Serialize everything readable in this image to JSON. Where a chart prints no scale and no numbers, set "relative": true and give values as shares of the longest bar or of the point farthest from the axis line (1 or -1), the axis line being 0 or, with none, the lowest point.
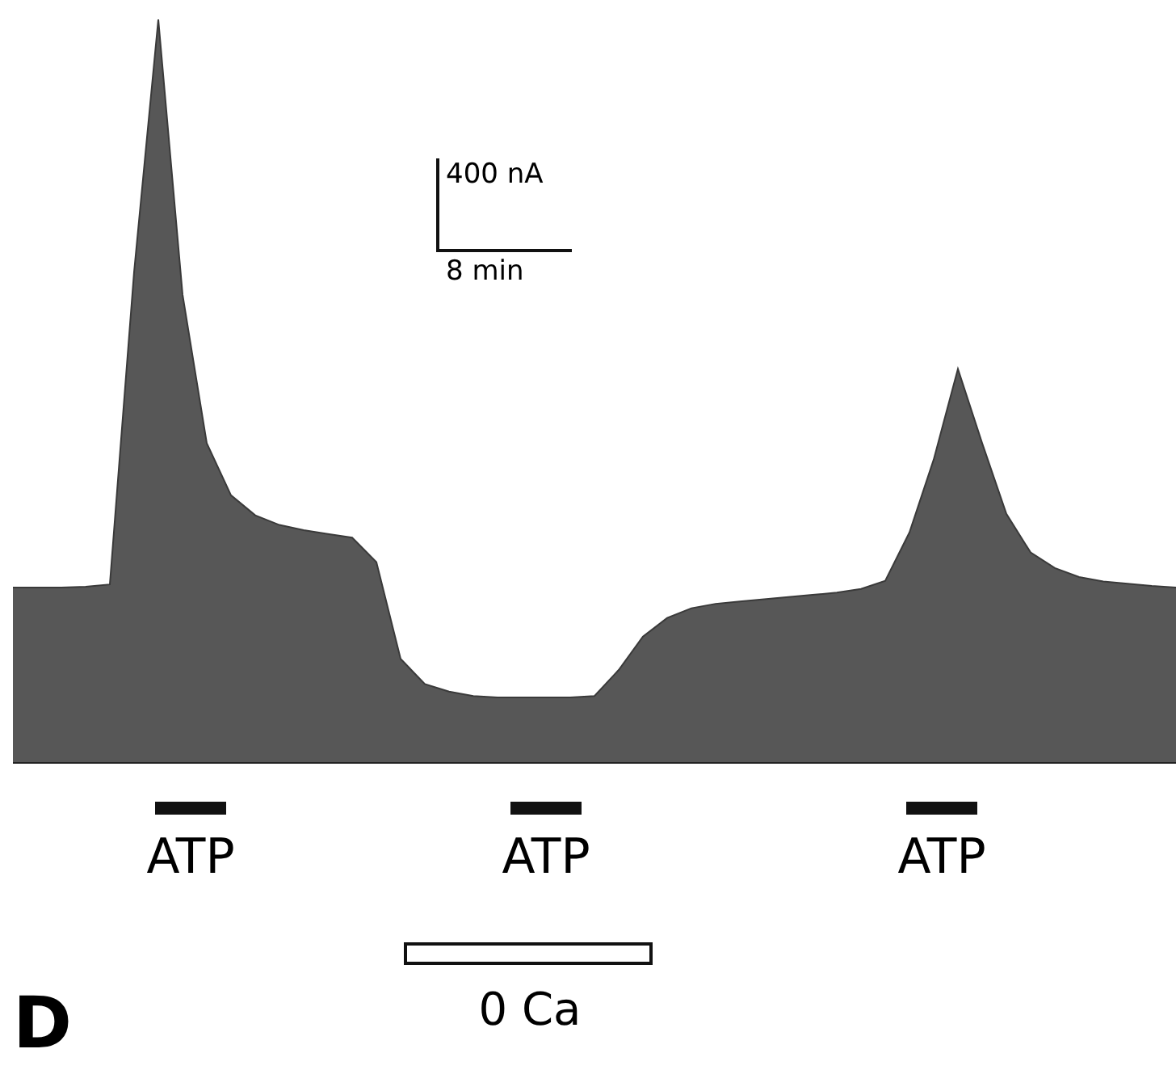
{
  "chart_data": {
    "type": "area",
    "relative": true,
    "categories": [
      null,
      null,
      null,
      null,
      null,
      null,
      null,
      null,
      null,
      null,
      null,
      null,
      null,
      null,
      null,
      null,
      null,
      null,
      null,
      null,
      null,
      null,
      null,
      null,
      null,
      null,
      null,
      null,
      null,
      null,
      null,
      null,
      null,
      null,
      null,
      null,
      null,
      null,
      null,
      null,
      null,
      null,
      null,
      null,
      null,
      null,
      null,
      null,
      null
    ],
    "series": [
      {
        "color": "#3a3a3a",
        "values": [
          0.236,
          0.236,
          0.236,
          0.237,
          0.24,
          0.66,
          1.0,
          0.63,
          0.43,
          0.36,
          0.333,
          0.32,
          0.313,
          0.308,
          0.303,
          0.27,
          0.14,
          0.106,
          0.096,
          0.09,
          0.088,
          0.088,
          0.088,
          0.088,
          0.09,
          0.125,
          0.17,
          0.195,
          0.208,
          0.214,
          0.217,
          0.22,
          0.223,
          0.226,
          0.229,
          0.234,
          0.245,
          0.31,
          0.408,
          0.53,
          0.43,
          0.335,
          0.283,
          0.262,
          0.25,
          0.244,
          0.241,
          0.238,
          0.236
        ]
      }
    ],
    "annotations": [
      "400 nA",
      "8 min",
      "ATP",
      "ATP",
      "ATP",
      "0 Ca",
      "D"
    ]
  }
}
